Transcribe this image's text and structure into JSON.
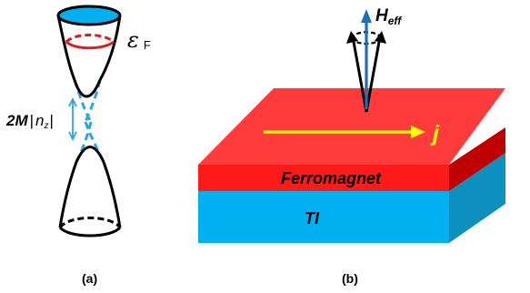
{
  "panel_a": {
    "caption": "(a)",
    "fermi_label": "ε",
    "fermi_sub": "F",
    "gap_label_prefix": "2M",
    "gap_label_bar": "|",
    "gap_label_n": "n",
    "gap_label_sub": "z",
    "gap_label_end": "|"
  },
  "panel_b": {
    "caption": "(b)",
    "heff_label": "H",
    "heff_sub": "eff",
    "current_label": "j",
    "top_layer_label": "Ferromagnet",
    "bottom_layer_label": "TI"
  },
  "colors": {
    "cone_black": "#000000",
    "dirac_cyan": "#2aa6e0",
    "fermi_red": "#e01b1b",
    "fill_blue": "#00b0f0",
    "ferro_red": "#ff3333",
    "ferro_dark": "#c00000",
    "ti_side": "#0d90c0",
    "current_yellow": "#ffff00",
    "heff_blue": "#1f6fb5"
  }
}
